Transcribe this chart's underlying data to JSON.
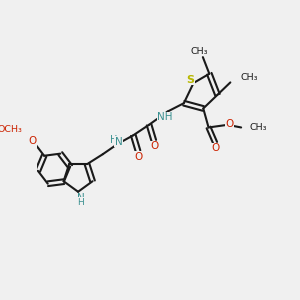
{
  "bg": "#f0f0f0",
  "bc": "#1a1a1a",
  "Sc": "#b8b800",
  "Nc": "#3a9090",
  "Oc": "#cc2200",
  "lw": 1.5,
  "dbo": 0.008,
  "fs": 7.5,
  "fsg": 6.8,
  "xlim": [
    0,
    1
  ],
  "ylim": [
    0,
    1
  ]
}
